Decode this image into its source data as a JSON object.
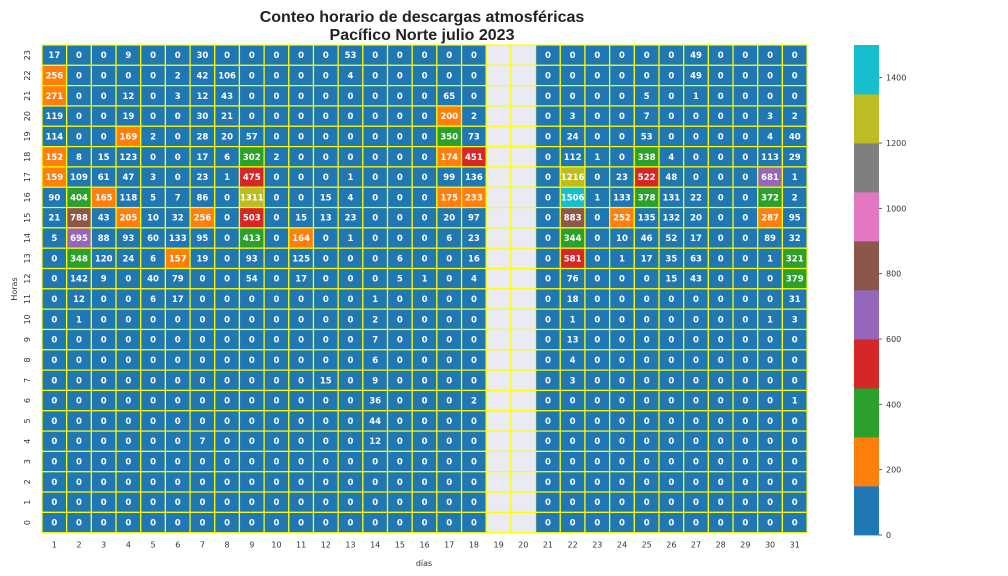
{
  "chart_data": {
    "type": "heatmap",
    "title": "Conteo horario de descargas atmosféricas",
    "subtitle": "Pacífico Norte julio 2023",
    "xlabel": "días",
    "ylabel": "Horas",
    "x": [
      1,
      2,
      3,
      4,
      5,
      6,
      7,
      8,
      9,
      10,
      11,
      12,
      13,
      14,
      15,
      16,
      17,
      18,
      19,
      20,
      21,
      22,
      23,
      24,
      25,
      26,
      27,
      28,
      29,
      30,
      31
    ],
    "y": [
      23,
      22,
      21,
      20,
      19,
      18,
      17,
      16,
      15,
      14,
      13,
      12,
      11,
      10,
      9,
      8,
      7,
      6,
      5,
      4,
      3,
      2,
      1,
      0
    ],
    "missing_days": [
      19,
      20
    ],
    "values": [
      [
        17,
        0,
        0,
        9,
        0,
        0,
        30,
        0,
        0,
        0,
        0,
        0,
        53,
        0,
        0,
        0,
        0,
        0,
        null,
        null,
        0,
        0,
        0,
        0,
        0,
        0,
        49,
        0,
        0,
        0,
        0
      ],
      [
        256,
        0,
        0,
        0,
        0,
        2,
        42,
        106,
        0,
        0,
        0,
        0,
        4,
        0,
        0,
        0,
        0,
        0,
        null,
        null,
        0,
        0,
        0,
        0,
        0,
        0,
        49,
        0,
        0,
        0,
        0
      ],
      [
        271,
        0,
        0,
        12,
        0,
        3,
        12,
        43,
        0,
        0,
        0,
        0,
        0,
        0,
        0,
        0,
        65,
        0,
        null,
        null,
        0,
        0,
        0,
        0,
        5,
        0,
        1,
        0,
        0,
        0,
        0
      ],
      [
        119,
        0,
        0,
        19,
        0,
        0,
        30,
        21,
        0,
        0,
        0,
        0,
        0,
        0,
        0,
        0,
        200,
        2,
        null,
        null,
        0,
        3,
        0,
        0,
        7,
        0,
        0,
        0,
        0,
        3,
        2
      ],
      [
        114,
        0,
        0,
        169,
        2,
        0,
        28,
        20,
        57,
        0,
        0,
        0,
        0,
        0,
        0,
        0,
        350,
        73,
        null,
        null,
        0,
        24,
        0,
        0,
        53,
        0,
        0,
        0,
        0,
        4,
        40
      ],
      [
        152,
        8,
        15,
        123,
        0,
        0,
        17,
        6,
        302,
        2,
        0,
        0,
        0,
        0,
        0,
        0,
        174,
        451,
        null,
        null,
        0,
        112,
        1,
        0,
        338,
        4,
        0,
        0,
        0,
        113,
        29
      ],
      [
        159,
        109,
        61,
        47,
        3,
        0,
        23,
        1,
        475,
        0,
        0,
        0,
        1,
        0,
        0,
        0,
        99,
        136,
        null,
        null,
        0,
        1216,
        0,
        23,
        522,
        48,
        0,
        0,
        0,
        681,
        1
      ],
      [
        90,
        404,
        165,
        118,
        5,
        7,
        86,
        0,
        1311,
        0,
        0,
        15,
        4,
        0,
        0,
        0,
        175,
        233,
        null,
        null,
        0,
        1506,
        1,
        133,
        378,
        131,
        22,
        0,
        0,
        372,
        2
      ],
      [
        21,
        788,
        43,
        205,
        10,
        32,
        256,
        0,
        503,
        0,
        15,
        13,
        23,
        0,
        0,
        0,
        20,
        97,
        null,
        null,
        0,
        883,
        0,
        252,
        135,
        132,
        20,
        0,
        0,
        287,
        95
      ],
      [
        5,
        695,
        88,
        93,
        60,
        133,
        95,
        0,
        413,
        0,
        164,
        0,
        1,
        0,
        0,
        0,
        6,
        23,
        null,
        null,
        0,
        344,
        0,
        10,
        46,
        52,
        17,
        0,
        0,
        89,
        32
      ],
      [
        0,
        348,
        120,
        24,
        6,
        157,
        19,
        0,
        93,
        0,
        125,
        0,
        0,
        0,
        6,
        0,
        0,
        16,
        null,
        null,
        0,
        581,
        0,
        1,
        17,
        35,
        63,
        0,
        0,
        1,
        321
      ],
      [
        0,
        142,
        9,
        0,
        40,
        79,
        0,
        0,
        54,
        0,
        17,
        0,
        0,
        0,
        5,
        1,
        0,
        4,
        null,
        null,
        0,
        76,
        0,
        0,
        0,
        15,
        43,
        0,
        0,
        0,
        379
      ],
      [
        0,
        12,
        0,
        0,
        6,
        17,
        0,
        0,
        0,
        0,
        0,
        0,
        0,
        1,
        0,
        0,
        0,
        0,
        null,
        null,
        0,
        18,
        0,
        0,
        0,
        0,
        0,
        0,
        0,
        0,
        31
      ],
      [
        0,
        1,
        0,
        0,
        0,
        0,
        0,
        0,
        0,
        0,
        0,
        0,
        0,
        2,
        0,
        0,
        0,
        0,
        null,
        null,
        0,
        1,
        0,
        0,
        0,
        0,
        0,
        0,
        0,
        1,
        3
      ],
      [
        0,
        0,
        0,
        0,
        0,
        0,
        0,
        0,
        0,
        0,
        0,
        0,
        0,
        7,
        0,
        0,
        0,
        0,
        null,
        null,
        0,
        13,
        0,
        0,
        0,
        0,
        0,
        0,
        0,
        0,
        0
      ],
      [
        0,
        0,
        0,
        0,
        0,
        0,
        0,
        0,
        0,
        0,
        0,
        0,
        0,
        6,
        0,
        0,
        0,
        0,
        null,
        null,
        0,
        4,
        0,
        0,
        0,
        0,
        0,
        0,
        0,
        0,
        0
      ],
      [
        0,
        0,
        0,
        0,
        0,
        0,
        0,
        0,
        0,
        0,
        0,
        15,
        0,
        9,
        0,
        0,
        0,
        0,
        null,
        null,
        0,
        3,
        0,
        0,
        0,
        0,
        0,
        0,
        0,
        0,
        0
      ],
      [
        0,
        0,
        0,
        0,
        0,
        0,
        0,
        0,
        0,
        0,
        0,
        0,
        0,
        36,
        0,
        0,
        0,
        2,
        null,
        null,
        0,
        0,
        0,
        0,
        0,
        0,
        0,
        0,
        0,
        0,
        1
      ],
      [
        0,
        0,
        0,
        0,
        0,
        0,
        0,
        0,
        0,
        0,
        0,
        0,
        0,
        44,
        0,
        0,
        0,
        0,
        null,
        null,
        0,
        0,
        0,
        0,
        0,
        0,
        0,
        0,
        0,
        0,
        0
      ],
      [
        0,
        0,
        0,
        0,
        0,
        0,
        7,
        0,
        0,
        0,
        0,
        0,
        0,
        12,
        0,
        0,
        0,
        0,
        null,
        null,
        0,
        0,
        0,
        0,
        0,
        0,
        0,
        0,
        0,
        0,
        0
      ],
      [
        0,
        0,
        0,
        0,
        0,
        0,
        0,
        0,
        0,
        0,
        0,
        0,
        0,
        0,
        0,
        0,
        0,
        0,
        null,
        null,
        0,
        0,
        0,
        0,
        0,
        0,
        0,
        0,
        0,
        0,
        0
      ],
      [
        0,
        0,
        0,
        0,
        0,
        0,
        0,
        0,
        0,
        0,
        0,
        0,
        0,
        0,
        0,
        0,
        0,
        0,
        null,
        null,
        0,
        0,
        0,
        0,
        0,
        0,
        0,
        0,
        0,
        0,
        0
      ],
      [
        0,
        0,
        0,
        0,
        0,
        0,
        0,
        0,
        0,
        0,
        0,
        0,
        0,
        0,
        0,
        0,
        0,
        0,
        null,
        null,
        0,
        0,
        0,
        0,
        0,
        0,
        0,
        0,
        0,
        0,
        0
      ],
      [
        0,
        0,
        0,
        0,
        0,
        0,
        0,
        0,
        0,
        0,
        0,
        0,
        0,
        0,
        0,
        0,
        0,
        0,
        null,
        null,
        0,
        0,
        0,
        0,
        0,
        0,
        0,
        0,
        0,
        0,
        0
      ]
    ],
    "colorbar": {
      "min": 0,
      "max": 1500,
      "ticks": [
        0,
        200,
        400,
        600,
        800,
        1000,
        1200,
        1400
      ],
      "colors": [
        "#1f77b4",
        "#ff7f0e",
        "#2ca02c",
        "#d62728",
        "#9467bd",
        "#8c564b",
        "#e377c2",
        "#7f7f7f",
        "#bcbd22",
        "#17becf"
      ]
    },
    "grid_line_color": "#ffff00",
    "missing_color": "#eaeaf2"
  }
}
